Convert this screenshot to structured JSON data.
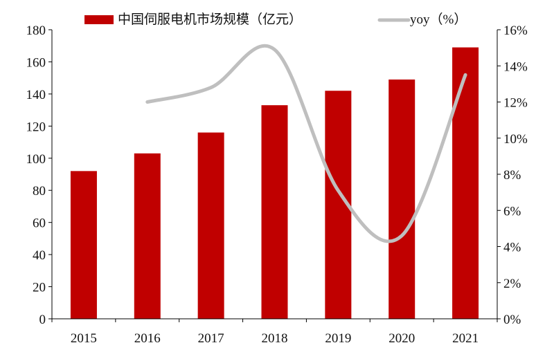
{
  "chart_data": {
    "type": "bar+line",
    "categories": [
      "2015",
      "2016",
      "2017",
      "2018",
      "2019",
      "2020",
      "2021"
    ],
    "series": [
      {
        "name": "中国伺服电机市场规模（亿元）",
        "type": "bar",
        "axis": "left",
        "color": "#c00000",
        "values": [
          92,
          103,
          116,
          133,
          142,
          149,
          169
        ]
      },
      {
        "name": "yoy（%）",
        "type": "line",
        "axis": "right",
        "color": "#bfbfbf",
        "smooth": true,
        "values": [
          null,
          12.0,
          12.8,
          14.9,
          7.1,
          4.6,
          13.5
        ]
      }
    ],
    "left_axis": {
      "ylim": [
        0,
        180
      ],
      "ticks": [
        "0",
        "20",
        "40",
        "60",
        "80",
        "100",
        "120",
        "140",
        "160",
        "180"
      ]
    },
    "right_axis": {
      "ylim": [
        0,
        16
      ],
      "ticks": [
        "0%",
        "2%",
        "4%",
        "6%",
        "8%",
        "10%",
        "12%",
        "14%",
        "16%"
      ]
    },
    "grid": false,
    "legend": "top"
  }
}
